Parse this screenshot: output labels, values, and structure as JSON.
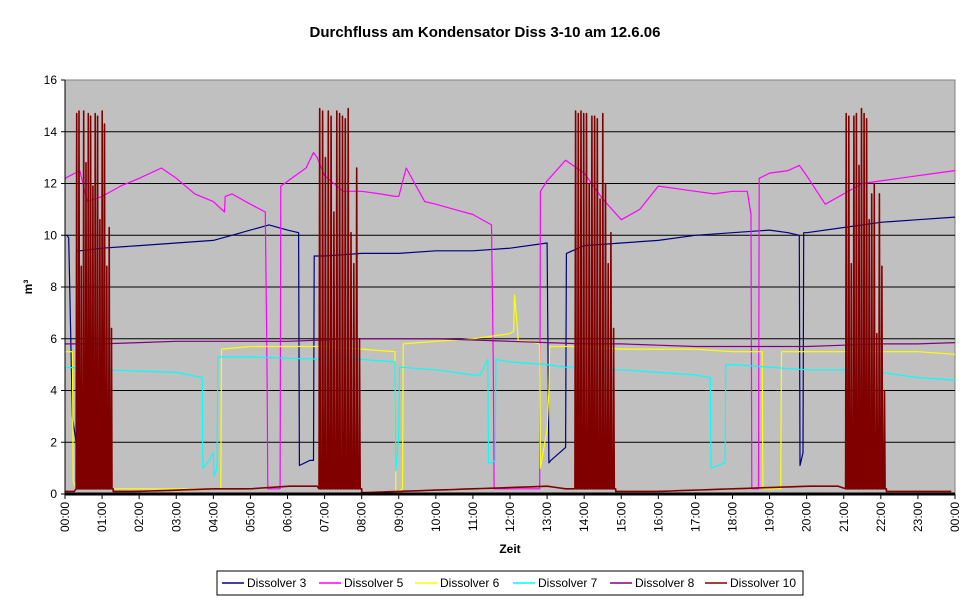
{
  "chart_data": {
    "type": "line",
    "title": "Durchfluss am Kondensator  Diss 3-10 am 12.6.06",
    "xlabel": "Zeit",
    "ylabel": "m³",
    "ylim": [
      0,
      16
    ],
    "yticks": [
      0,
      2,
      4,
      6,
      8,
      10,
      12,
      14,
      16
    ],
    "xlim_hours": [
      0,
      24
    ],
    "xticks": [
      "00:00",
      "01:00",
      "02:00",
      "03:00",
      "04:00",
      "05:00",
      "06:00",
      "07:00",
      "08:00",
      "09:00",
      "10:00",
      "11:00",
      "12:00",
      "13:00",
      "14:00",
      "15:00",
      "16:00",
      "17:00",
      "18:00",
      "19:00",
      "20:00",
      "21:00",
      "22:00",
      "23:00",
      "00:00"
    ],
    "grid": "horizontal",
    "background": "#c0c0c0",
    "legend_position": "bottom",
    "series": [
      {
        "name": "Dissolver 3",
        "color": "#000080",
        "x": [
          0,
          0.05,
          0.1,
          0.2,
          0.3,
          0.32,
          0.4,
          1,
          2,
          3,
          4,
          4.5,
          5,
          5.5,
          6,
          6.3,
          6.32,
          6.6,
          6.7,
          6.72,
          7,
          8,
          9,
          10,
          11,
          12,
          13,
          13.05,
          13.1,
          13.5,
          13.52,
          14,
          15,
          16,
          17,
          18,
          19,
          19.5,
          19.8,
          19.82,
          19.9,
          19.92,
          20,
          21,
          22,
          23,
          24
        ],
        "y": [
          10,
          10,
          9.9,
          3,
          2,
          9.4,
          9.4,
          9.5,
          9.6,
          9.7,
          9.8,
          10,
          10.2,
          10.4,
          10.2,
          10.1,
          1.1,
          1.3,
          1.3,
          9.2,
          9.2,
          9.3,
          9.3,
          9.4,
          9.4,
          9.5,
          9.7,
          1.2,
          1.3,
          1.8,
          9.3,
          9.6,
          9.7,
          9.8,
          10,
          10.1,
          10.2,
          10.1,
          10,
          1.1,
          1.6,
          10.1,
          10.1,
          10.3,
          10.5,
          10.6,
          10.7
        ]
      },
      {
        "name": "Dissolver 5",
        "color": "#ff00ff",
        "x": [
          0,
          0.4,
          0.6,
          1,
          1.5,
          2,
          2.6,
          3,
          3.5,
          4,
          4.3,
          4.32,
          4.5,
          5,
          5.4,
          5.42,
          5.45,
          5.47,
          5.8,
          5.82,
          6.5,
          6.7,
          6.8,
          7,
          7.5,
          8,
          8.5,
          8.9,
          9,
          9.2,
          9.7,
          10,
          10.5,
          11,
          11.5,
          11.55,
          11.57,
          11.6,
          12,
          12.5,
          12.8,
          12.82,
          13,
          13.5,
          14,
          14.5,
          15,
          15.5,
          16,
          16.5,
          17,
          17.5,
          18,
          18.4,
          18.5,
          18.52,
          18.7,
          18.72,
          19,
          19.5,
          19.8,
          20,
          20.5,
          21,
          21.5,
          22,
          22.5,
          23,
          23.5,
          24
        ],
        "y": [
          12.2,
          12.5,
          11.3,
          11.5,
          11.9,
          12.2,
          12.6,
          12.2,
          11.6,
          11.3,
          10.9,
          11.5,
          11.6,
          11.2,
          10.9,
          8.5,
          4.5,
          0.2,
          0.2,
          11.9,
          12.6,
          13.2,
          13.0,
          12.3,
          11.7,
          11.7,
          11.6,
          11.5,
          11.5,
          12.6,
          11.3,
          11.2,
          11.0,
          10.8,
          10.4,
          5,
          0.2,
          0.2,
          0.2,
          0.2,
          0.2,
          11.7,
          12.1,
          12.9,
          12.4,
          11.4,
          10.6,
          11.0,
          11.9,
          11.8,
          11.7,
          11.6,
          11.7,
          11.7,
          10.8,
          0.2,
          0.2,
          12.2,
          12.4,
          12.5,
          12.7,
          12.3,
          11.2,
          11.6,
          12.0,
          12.1,
          12.2,
          12.3,
          12.4,
          12.5
        ]
      },
      {
        "name": "Dissolver 6",
        "color": "#ffff00",
        "x": [
          0,
          0.2,
          0.22,
          0.3,
          0.5,
          4,
          4.2,
          4.22,
          5,
          6,
          7,
          8,
          8.9,
          8.92,
          9,
          9.1,
          9.12,
          10,
          11,
          12,
          12.1,
          12.12,
          12.2,
          12.22,
          12.5,
          12.8,
          12.82,
          13,
          13.05,
          13.07,
          14,
          15,
          16,
          17,
          18,
          18.8,
          18.82,
          19.3,
          19.32,
          20,
          21,
          22,
          23,
          24
        ],
        "y": [
          5.5,
          5.5,
          0.5,
          0.2,
          0.2,
          0.2,
          0.2,
          5.6,
          5.7,
          5.7,
          5.7,
          5.6,
          5.5,
          0.1,
          0.1,
          0.2,
          5.8,
          5.9,
          6.0,
          6.2,
          6.3,
          7.7,
          6.4,
          5.9,
          5.9,
          5.8,
          1,
          2.5,
          4,
          5.7,
          5.7,
          5.6,
          5.6,
          5.6,
          5.5,
          5.5,
          0.2,
          0.2,
          5.5,
          5.5,
          5.5,
          5.5,
          5.5,
          5.4
        ]
      },
      {
        "name": "Dissolver 7",
        "color": "#00ffff",
        "x": [
          0,
          0.5,
          1,
          2,
          3,
          3.7,
          3.72,
          3.9,
          4,
          4.02,
          4.1,
          4.12,
          5,
          6,
          7,
          7.5,
          8,
          8.9,
          8.92,
          9.0,
          9.02,
          10,
          11,
          11.2,
          11.4,
          11.42,
          11.5,
          11.6,
          11.62,
          12,
          13,
          13.5,
          14,
          14.5,
          15,
          16,
          17,
          17.4,
          17.42,
          17.8,
          17.82,
          18,
          19,
          20,
          21,
          22,
          23,
          24
        ],
        "y": [
          4.9,
          4.85,
          4.8,
          4.75,
          4.7,
          4.5,
          1.0,
          1.3,
          1.6,
          0.7,
          1.0,
          5.3,
          5.3,
          5.25,
          5.2,
          5.2,
          5.2,
          5.1,
          0.9,
          2.3,
          4.9,
          4.8,
          4.6,
          4.6,
          5.2,
          1.2,
          1.2,
          1.3,
          5.2,
          5.1,
          5.0,
          4.9,
          4.9,
          4.8,
          4.8,
          4.7,
          4.6,
          4.5,
          1.0,
          1.2,
          5.0,
          5.0,
          4.9,
          4.8,
          4.8,
          4.7,
          4.5,
          4.4
        ]
      },
      {
        "name": "Dissolver 8",
        "color": "#800080",
        "x": [
          0,
          1,
          2,
          3,
          4,
          5,
          6,
          7,
          7.5,
          8,
          9,
          10,
          11,
          12,
          13,
          14,
          15,
          16,
          17,
          18,
          19,
          20,
          21,
          22,
          23,
          24
        ],
        "y": [
          5.8,
          5.8,
          5.85,
          5.9,
          5.9,
          5.9,
          5.9,
          5.95,
          6.0,
          6.0,
          6.0,
          6.0,
          5.95,
          5.9,
          5.85,
          5.8,
          5.8,
          5.75,
          5.7,
          5.7,
          5.7,
          5.7,
          5.75,
          5.8,
          5.8,
          5.85
        ]
      },
      {
        "name": "Dissolver 10",
        "color": "#800000",
        "baseline": {
          "x": [
            0,
            1,
            2,
            3,
            4,
            5,
            6,
            7,
            8,
            9,
            10,
            11,
            12,
            13,
            14,
            15,
            16,
            17,
            18,
            19,
            20,
            21,
            22,
            23,
            24
          ],
          "y": [
            0.1,
            0.1,
            0.1,
            0.15,
            0.2,
            0.2,
            0.3,
            0.3,
            0.05,
            0.1,
            0.15,
            0.2,
            0.25,
            0.3,
            0.1,
            0.1,
            0.1,
            0.15,
            0.2,
            0.25,
            0.3,
            0.3,
            0.1,
            0.1,
            0.1
          ]
        },
        "bursts": [
          {
            "start": 0.3,
            "end": 1.3,
            "peaks": [
              14.7,
              14.8,
              8.8,
              14.8,
              12.8,
              14.7,
              14.6,
              11.9,
              14.7,
              14.6,
              10.6,
              14.8,
              14.3,
              8.8,
              10.3,
              6.4
            ]
          },
          {
            "start": 6.85,
            "end": 8.0,
            "peaks": [
              14.9,
              14.8,
              13.0,
              14.8,
              14.6,
              10.9,
              14.8,
              14.7,
              14.6,
              14.5,
              14.9,
              10.1,
              8.9,
              12.6,
              6.0
            ]
          },
          {
            "start": 13.75,
            "end": 14.85,
            "peaks": [
              14.8,
              14.7,
              14.8,
              14.7,
              14.7,
              12.0,
              14.6,
              14.6,
              14.5,
              11.4,
              14.7,
              12.0,
              8.9,
              10.1,
              6.4
            ]
          },
          {
            "start": 21.05,
            "end": 22.15,
            "peaks": [
              14.7,
              14.6,
              8.9,
              14.6,
              14.7,
              12.7,
              14.9,
              14.7,
              14.5,
              10.6,
              11.6,
              12.0,
              6.2,
              11.6,
              8.8,
              4.0
            ]
          }
        ]
      }
    ]
  }
}
